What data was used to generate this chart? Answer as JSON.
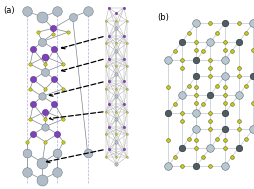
{
  "background_color": "#ffffff",
  "panel_a_label": "(a)",
  "panel_b_label": "(b)",
  "fig_width": 2.54,
  "fig_height": 1.89,
  "dpi": 100,
  "border_color": "#333333",
  "panel_a": {
    "Ag_color": "#b0bcc8",
    "Bi_color": "#8040b8",
    "S_color": "#c8cc20",
    "Ag_size_large": 28,
    "Ag_size_small": 18,
    "Bi_size": 20,
    "S_size": 6,
    "bond_color": "#808890",
    "dashed_line_color": "#9090cc",
    "arrow_color": "#000000"
  },
  "panel_b": {
    "Ag_color": "#b8c8d0",
    "Bi_color": "#505c64",
    "S_color": "#c8cc20",
    "Ag_size": 30,
    "Bi_size": 22,
    "S_size": 7,
    "edge_color": "#c8d0d8",
    "edge_lw": 0.6
  }
}
